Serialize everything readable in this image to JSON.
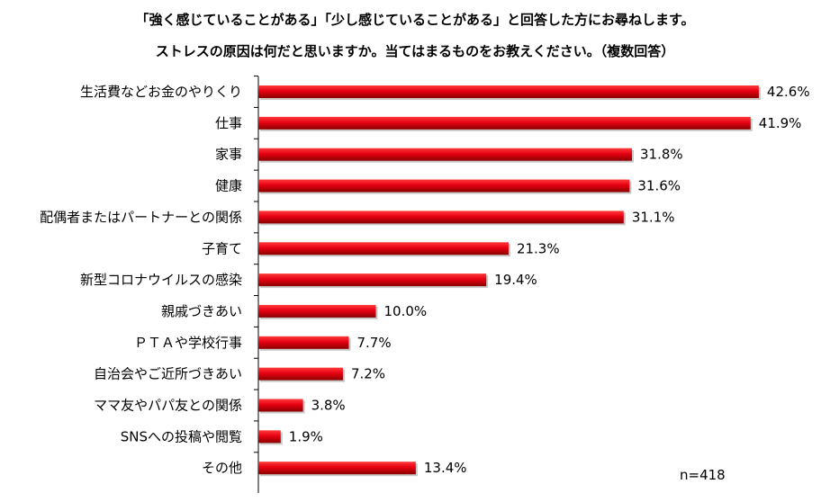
{
  "title_line1": "「強く感じていることがある」「少し感じていることがある」と回答した方にお尋ねします。",
  "title_line2": "ストレスの原因は何だと思いますか。当てはまるものをお教えください。（複数回答）",
  "sample_note": "n=418",
  "colors": {
    "bar": "#e60012",
    "bar_dark": "#8a0000",
    "axis": "#000000"
  },
  "chart_data": {
    "type": "bar",
    "orientation": "horizontal",
    "title": "ストレスの原因は何だと思いますか。当てはまるものをお教えください。（複数回答）",
    "xlabel": "",
    "ylabel": "",
    "xlim": [
      0,
      45
    ],
    "unit": "%",
    "categories": [
      "生活費などお金のやりくり",
      "仕事",
      "家事",
      "健康",
      "配偶者またはパートナーとの関係",
      "子育て",
      "新型コロナウイルスの感染",
      "親戚づきあい",
      "ＰＴＡや学校行事",
      "自治会やご近所づきあい",
      "ママ友やパパ友との関係",
      "SNSへの投稿や閲覧",
      "その他"
    ],
    "values": [
      42.6,
      41.9,
      31.8,
      31.6,
      31.1,
      21.3,
      19.4,
      10.0,
      7.7,
      7.2,
      3.8,
      1.9,
      13.4
    ],
    "value_labels": [
      "42.6%",
      "41.9%",
      "31.8%",
      "31.6%",
      "31.1%",
      "21.3%",
      "19.4%",
      "10.0%",
      "7.7%",
      "7.2%",
      "3.8%",
      "1.9%",
      "13.4%"
    ]
  }
}
